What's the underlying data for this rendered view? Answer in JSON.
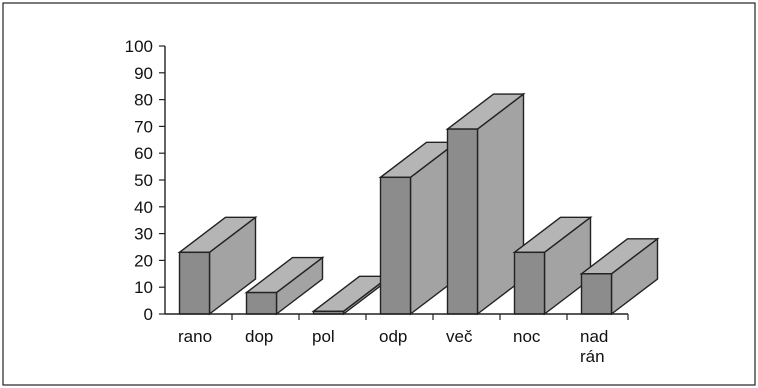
{
  "chart_data": {
    "type": "bar",
    "style": "3d",
    "categories": [
      [
        "rano"
      ],
      [
        "dop"
      ],
      [
        "pol"
      ],
      [
        "odp"
      ],
      [
        "več"
      ],
      [
        "noc"
      ],
      [
        "nad",
        "rán"
      ]
    ],
    "values": [
      23,
      8,
      1,
      51,
      69,
      23,
      15
    ],
    "yticks": [
      0,
      10,
      20,
      30,
      40,
      50,
      60,
      70,
      80,
      90,
      100
    ],
    "ylim": [
      0,
      100
    ],
    "title": "",
    "xlabel": "",
    "ylabel": "",
    "grid": false,
    "legend": "none",
    "colors": {
      "front": "#8c8c8c",
      "side": "#a3a3a3",
      "top": "#b5b5b5",
      "outline": "#222222"
    }
  }
}
